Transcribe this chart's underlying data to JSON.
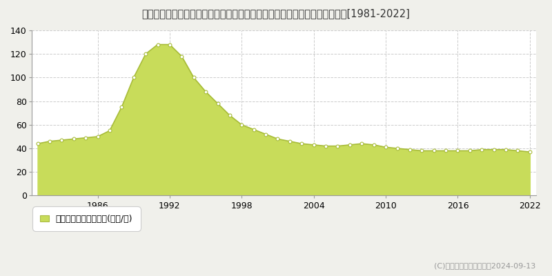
{
  "title": "東京都西多摩郡瑞穂町大字笥根ケ崎字狭山１８８番６　地価公示　地価推移[1981-2022]",
  "years": [
    1981,
    1982,
    1983,
    1984,
    1985,
    1986,
    1987,
    1988,
    1989,
    1990,
    1991,
    1992,
    1993,
    1994,
    1995,
    1996,
    1997,
    1998,
    1999,
    2000,
    2001,
    2002,
    2003,
    2004,
    2005,
    2006,
    2007,
    2008,
    2009,
    2010,
    2011,
    2012,
    2013,
    2014,
    2015,
    2016,
    2017,
    2018,
    2019,
    2020,
    2021,
    2022
  ],
  "values": [
    44,
    46,
    47,
    48,
    49,
    50,
    55,
    75,
    100,
    120,
    128,
    128,
    118,
    100,
    88,
    78,
    68,
    60,
    56,
    52,
    48,
    46,
    44,
    43,
    42,
    42,
    43,
    44,
    43,
    41,
    40,
    39,
    38,
    38,
    38,
    38,
    38,
    39,
    39,
    39,
    38,
    37
  ],
  "fill_color": "#c8dc5a",
  "line_color": "#a8bc3a",
  "marker_facecolor": "#ffffff",
  "marker_edgecolor": "#a8bc3a",
  "bg_color": "#f0f0eb",
  "plot_bg_color": "#ffffff",
  "grid_color": "#cccccc",
  "ylim": [
    0,
    140
  ],
  "yticks": [
    0,
    20,
    40,
    60,
    80,
    100,
    120,
    140
  ],
  "xticks": [
    1986,
    1992,
    1998,
    2004,
    2010,
    2016,
    2022
  ],
  "legend_label": "地価公示　平均嵪単価(万円/嵪)",
  "copyright_text": "(C)土地価格ドットコム　2024-09-13",
  "title_fontsize": 10.5,
  "tick_fontsize": 9,
  "legend_fontsize": 9,
  "copyright_fontsize": 8
}
